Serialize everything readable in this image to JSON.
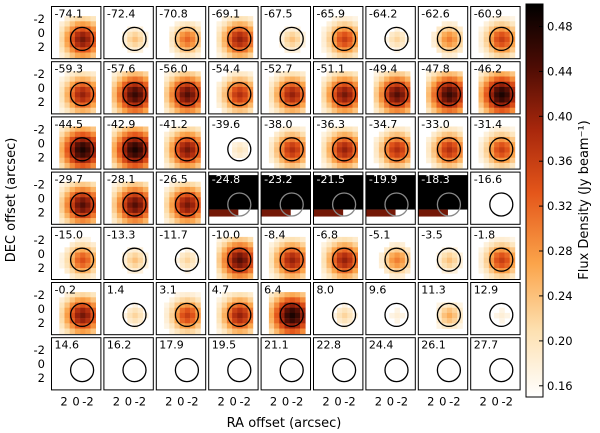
{
  "chart_data": {
    "type": "heatmap",
    "layout": "channel map grid, 7 rows x 9 columns",
    "xlabel": "RA offset (arcsec)",
    "ylabel": "DEC offset (arcsec)",
    "x_tick_labels": [
      "2",
      "0",
      "-2"
    ],
    "y_tick_labels": [
      "-2",
      "0",
      "2"
    ],
    "xlim": [
      4,
      -4
    ],
    "ylim": [
      -3.5,
      3.8
    ],
    "colorbar": {
      "label": "Flux Density (Jy beam⁻¹)",
      "ticks": [
        "0.48",
        "0.44",
        "0.40",
        "0.36",
        "0.32",
        "0.28",
        "0.24",
        "0.20",
        "0.16"
      ],
      "tick_values": [
        0.48,
        0.44,
        0.4,
        0.36,
        0.32,
        0.28,
        0.24,
        0.2,
        0.16
      ],
      "range": [
        0.15,
        0.5
      ],
      "colormap": "white-orange-red-black"
    },
    "channel_labels": [
      [
        "-74.1",
        "-72.4",
        "-70.8",
        "-69.1",
        "-67.5",
        "-65.9",
        "-64.2",
        "-62.6",
        "-60.9"
      ],
      [
        "-59.3",
        "-57.6",
        "-56.0",
        "-54.4",
        "-52.7",
        "-51.1",
        "-49.4",
        "-47.8",
        "-46.2"
      ],
      [
        "-44.5",
        "-42.9",
        "-41.2",
        "-39.6",
        "-38.0",
        "-36.3",
        "-34.7",
        "-33.0",
        "-31.4"
      ],
      [
        "-29.7",
        "-28.1",
        "-26.5",
        "-24.8",
        "-23.2",
        "-21.5",
        "-19.9",
        "-18.3",
        "-16.6"
      ],
      [
        "-15.0",
        "-13.3",
        "-11.7",
        "-10.0",
        "-8.4",
        "-6.8",
        "-5.1",
        "-3.5",
        "-1.8"
      ],
      [
        "-0.2",
        "1.4",
        "3.1",
        "4.7",
        "6.4",
        "8.0",
        "9.6",
        "11.3",
        "12.9"
      ],
      [
        "14.6",
        "16.2",
        "17.9",
        "19.5",
        "21.1",
        "22.8",
        "24.4",
        "26.1",
        "27.7"
      ]
    ],
    "peak_flux_estimates": [
      [
        0.42,
        0.24,
        0.32,
        0.4,
        0.24,
        0.36,
        0.22,
        0.3,
        0.36
      ],
      [
        0.4,
        0.46,
        0.44,
        0.38,
        0.4,
        0.42,
        0.44,
        0.46,
        0.48
      ],
      [
        0.48,
        0.48,
        0.42,
        0.2,
        0.38,
        0.4,
        0.38,
        0.38,
        0.36
      ],
      [
        0.44,
        0.44,
        0.42,
        0.5,
        0.5,
        0.5,
        0.5,
        0.5,
        0.0
      ],
      [
        0.34,
        0.24,
        0.22,
        0.44,
        0.4,
        0.4,
        0.3,
        0.24,
        0.36
      ],
      [
        0.42,
        0.22,
        0.36,
        0.4,
        0.48,
        0.22,
        0.18,
        0.26,
        0.18
      ],
      [
        0.0,
        0.0,
        0.0,
        0.0,
        0.0,
        0.0,
        0.0,
        0.0,
        0.0
      ]
    ]
  }
}
